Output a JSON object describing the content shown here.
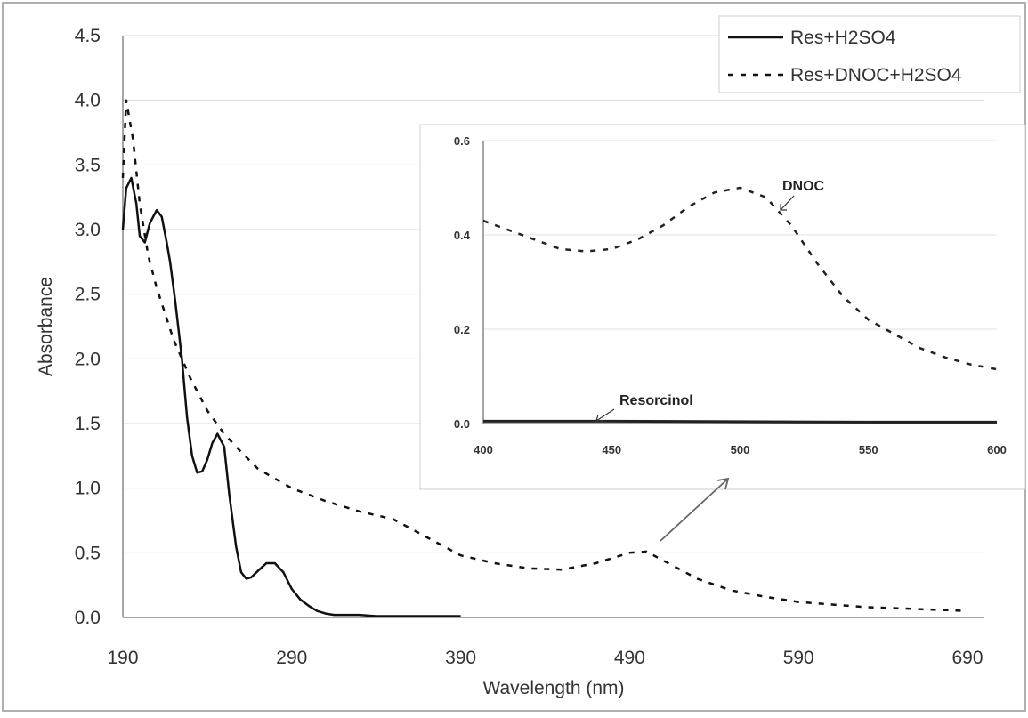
{
  "chart_data": [
    {
      "type": "line",
      "xlabel": "Wavelength (nm)",
      "ylabel": "Absorbance",
      "xlim": [
        190,
        700
      ],
      "ylim": [
        0,
        4.5
      ],
      "xticks": [
        "190",
        "290",
        "390",
        "490",
        "590",
        "690"
      ],
      "yticks": [
        "0.0",
        "0.5",
        "1.0",
        "1.5",
        "2.0",
        "2.5",
        "3.0",
        "3.5",
        "4.0",
        "4.5"
      ],
      "grid": "horizontal",
      "legend_position": "top-right",
      "series": [
        {
          "name": "Res+H2SO4",
          "style": "solid",
          "color": "#111111",
          "x": [
            190,
            192,
            195,
            198,
            200,
            203,
            206,
            210,
            213,
            216,
            218,
            221,
            225,
            228,
            231,
            234,
            237,
            240,
            243,
            246,
            250,
            253,
            257,
            260,
            263,
            266,
            270,
            275,
            280,
            285,
            290,
            295,
            300,
            305,
            310,
            315,
            320,
            330,
            340,
            350,
            360,
            380,
            390
          ],
          "y": [
            3.0,
            3.32,
            3.4,
            3.2,
            2.95,
            2.9,
            3.05,
            3.15,
            3.1,
            2.9,
            2.75,
            2.45,
            2.0,
            1.55,
            1.25,
            1.12,
            1.13,
            1.22,
            1.35,
            1.42,
            1.32,
            0.95,
            0.55,
            0.35,
            0.3,
            0.31,
            0.36,
            0.42,
            0.42,
            0.35,
            0.22,
            0.14,
            0.09,
            0.05,
            0.03,
            0.02,
            0.02,
            0.02,
            0.01,
            0.01,
            0.01,
            0.01,
            0.01
          ]
        },
        {
          "name": "Res+DNOC+H2SO4",
          "style": "dashed",
          "color": "#111111",
          "x": [
            190,
            192,
            196,
            200,
            205,
            210,
            215,
            220,
            230,
            240,
            250,
            260,
            270,
            290,
            310,
            330,
            350,
            370,
            390,
            410,
            430,
            450,
            470,
            490,
            500,
            510,
            530,
            550,
            570,
            590,
            610,
            630,
            650,
            670,
            690
          ],
          "y": [
            3.4,
            4.0,
            3.7,
            3.2,
            2.8,
            2.55,
            2.35,
            2.15,
            1.85,
            1.6,
            1.42,
            1.28,
            1.15,
            1.0,
            0.9,
            0.82,
            0.76,
            0.62,
            0.48,
            0.42,
            0.38,
            0.37,
            0.42,
            0.5,
            0.51,
            0.44,
            0.3,
            0.21,
            0.16,
            0.12,
            0.1,
            0.08,
            0.07,
            0.06,
            0.05
          ]
        }
      ]
    },
    {
      "type": "line",
      "inset": true,
      "xlim": [
        400,
        600
      ],
      "ylim": [
        0,
        0.6
      ],
      "xticks": [
        "400",
        "450",
        "500",
        "550",
        "600"
      ],
      "yticks": [
        "0.0",
        "0.2",
        "0.4",
        "0.6"
      ],
      "grid": "horizontal",
      "annotations": [
        "DNOC",
        "Resorcinol"
      ],
      "series": [
        {
          "name": "DNOC",
          "style": "dashed",
          "x": [
            400,
            410,
            420,
            430,
            440,
            450,
            460,
            470,
            480,
            490,
            500,
            510,
            520,
            530,
            540,
            550,
            560,
            570,
            580,
            590,
            600
          ],
          "y": [
            0.43,
            0.41,
            0.39,
            0.37,
            0.365,
            0.37,
            0.39,
            0.42,
            0.46,
            0.49,
            0.5,
            0.48,
            0.42,
            0.34,
            0.27,
            0.22,
            0.19,
            0.16,
            0.14,
            0.125,
            0.115
          ]
        },
        {
          "name": "Resorcinol",
          "style": "solid",
          "x": [
            400,
            450,
            500,
            550,
            600
          ],
          "y": [
            0.005,
            0.005,
            0.004,
            0.003,
            0.003
          ]
        }
      ]
    }
  ]
}
